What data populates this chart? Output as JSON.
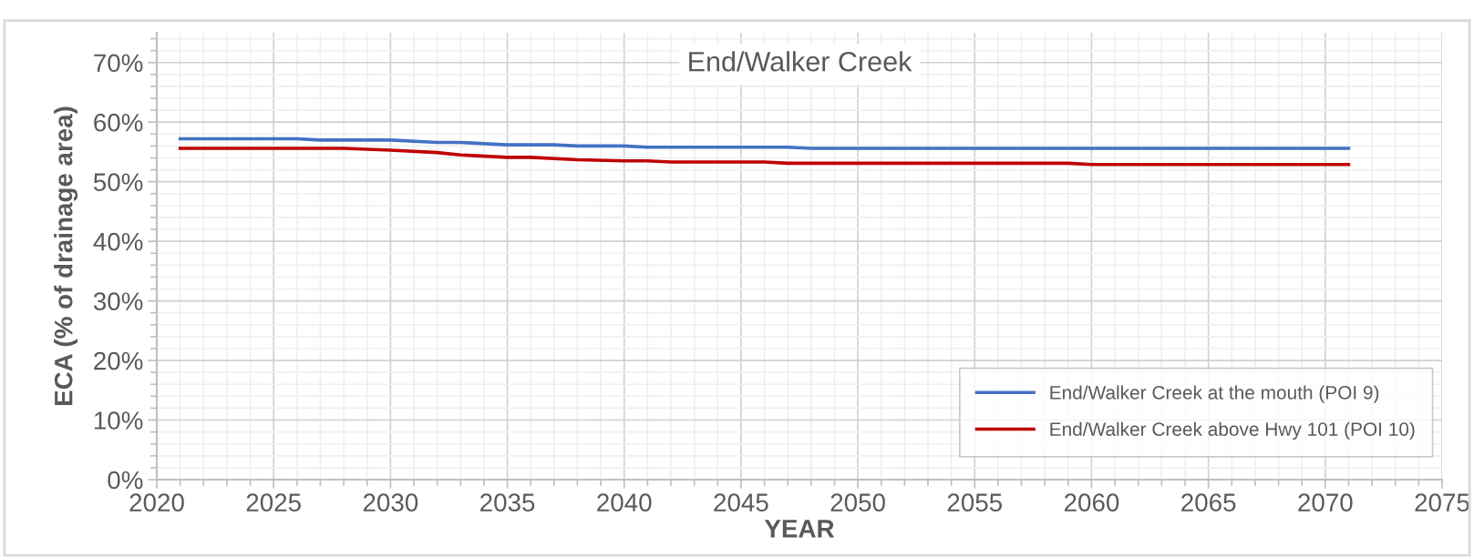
{
  "chart_data": {
    "type": "line",
    "title": "End/Walker Creek",
    "xlabel": "YEAR",
    "ylabel": "ECA (% of drainage area)",
    "xlim": [
      2020,
      2075
    ],
    "xticks": [
      2020,
      2025,
      2030,
      2035,
      2040,
      2045,
      2050,
      2055,
      2060,
      2065,
      2070,
      2075
    ],
    "ylim": [
      0,
      75
    ],
    "yticks": [
      {
        "value": 0,
        "label": "0%"
      },
      {
        "value": 10,
        "label": "10%"
      },
      {
        "value": 20,
        "label": "20%"
      },
      {
        "value": 30,
        "label": "30%"
      },
      {
        "value": 40,
        "label": "40%"
      },
      {
        "value": 50,
        "label": "50%"
      },
      {
        "value": 60,
        "label": "60%"
      },
      {
        "value": 70,
        "label": "70%"
      }
    ],
    "grid": true,
    "legend": "bottom right",
    "marker": "none",
    "line_style": "solid",
    "series": [
      {
        "name": "End/Walker Creek at the mouth (POI 9)",
        "color": "#4472c4",
        "x": [
          2021,
          2026,
          2027,
          2030,
          2032,
          2033,
          2035,
          2037,
          2038,
          2040,
          2041,
          2047,
          2048,
          2071
        ],
        "values": [
          57.2,
          57.2,
          57.0,
          57.0,
          56.6,
          56.6,
          56.2,
          56.2,
          56.0,
          56.0,
          55.8,
          55.8,
          55.6,
          55.6
        ]
      },
      {
        "name": "End/Walker Creek above Hwy 101 (POI 10)",
        "color": "#c00000",
        "x": [
          2021,
          2028,
          2030,
          2032,
          2033,
          2035,
          2036,
          2038,
          2040,
          2041,
          2042,
          2046,
          2047,
          2059,
          2060,
          2071
        ],
        "values": [
          55.6,
          55.6,
          55.3,
          54.9,
          54.5,
          54.1,
          54.1,
          53.7,
          53.5,
          53.5,
          53.3,
          53.3,
          53.1,
          53.1,
          52.9,
          52.9
        ]
      }
    ]
  }
}
